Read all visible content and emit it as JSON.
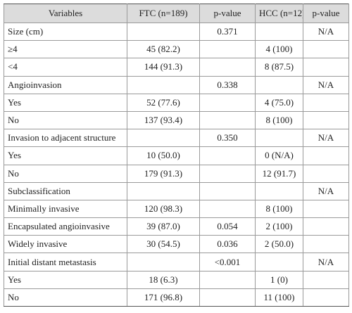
{
  "table": {
    "header": [
      "Variables",
      "FTC (n=189)",
      "p-value",
      "HCC (n=12)",
      "p-value"
    ],
    "rows": [
      {
        "label": "Size (cm)",
        "p_ftc": "0.371",
        "p_hcc": "N/A"
      },
      {
        "label": "≥4",
        "ftc": "45 (82.2)",
        "hcc": "4 (100)"
      },
      {
        "label": "<4",
        "ftc": "144 (91.3)",
        "hcc": "8 (87.5)"
      },
      {
        "label": "Angioinvasion",
        "p_ftc": "0.338",
        "p_hcc": "N/A"
      },
      {
        "label": "Yes",
        "ftc": "52 (77.6)",
        "hcc": "4 (75.0)"
      },
      {
        "label": "No",
        "ftc": "137 (93.4)",
        "hcc": "8 (100)"
      },
      {
        "label": "Invasion to adjacent structure",
        "p_ftc": "0.350",
        "p_hcc": "N/A"
      },
      {
        "label": "Yes",
        "ftc": "10 (50.0)",
        "hcc": "0 (N/A)"
      },
      {
        "label": "No",
        "ftc": "179 (91.3)",
        "hcc": "12 (91.7)"
      },
      {
        "label": "Subclassification",
        "p_hcc": "N/A"
      },
      {
        "label": "Minimally invasive",
        "ftc": "120 (98.3)",
        "hcc": "8 (100)"
      },
      {
        "label": "Encapsulated angioinvasive",
        "ftc": "39 (87.0)",
        "p_ftc": "0.054",
        "hcc": "2 (100)"
      },
      {
        "label": "Widely invasive",
        "ftc": "30 (54.5)",
        "p_ftc": "0.036",
        "hcc": "2 (50.0)"
      },
      {
        "label": "Initial distant metastasis",
        "p_ftc": "<0.001",
        "p_hcc": "N/A"
      },
      {
        "label": "Yes",
        "ftc": "18 (6.3)",
        "hcc": "1 (0)"
      },
      {
        "label": "No",
        "ftc": "171 (96.8)",
        "hcc": "11 (100)"
      }
    ]
  }
}
